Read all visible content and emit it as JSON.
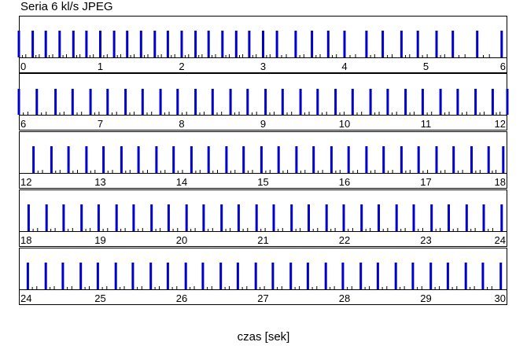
{
  "chart_data": {
    "type": "bar",
    "title": "Seria 6 kl/s JPEG",
    "xlabel": "czas [sek]",
    "ylabel": "",
    "grid": false,
    "legend": "none",
    "bar_color": "#0000cc",
    "tick_color": "#000000",
    "rows": [
      {
        "xlim": [
          0,
          6
        ],
        "tick_labels": [
          "0",
          "1",
          "2",
          "3",
          "4",
          "5",
          "6"
        ],
        "frames": [
          0.0,
          0.17,
          0.33,
          0.5,
          0.67,
          0.83,
          1.0,
          1.17,
          1.33,
          1.5,
          1.67,
          1.83,
          2.0,
          2.17,
          2.33,
          2.5,
          2.67,
          2.83,
          3.0,
          3.17,
          3.4,
          3.6,
          3.8,
          4.0,
          4.27,
          4.47,
          4.7,
          4.9,
          5.13,
          5.33,
          5.63,
          5.93
        ]
      },
      {
        "xlim": [
          6,
          12
        ],
        "tick_labels": [
          "6",
          "7",
          "8",
          "9",
          "10",
          "11",
          "12"
        ],
        "frames": [
          6.0,
          6.22,
          6.45,
          6.66,
          6.88,
          7.09,
          7.31,
          7.52,
          7.74,
          7.95,
          8.17,
          8.38,
          8.6,
          8.81,
          9.03,
          9.24,
          9.46,
          9.67,
          9.89,
          10.1,
          10.32,
          10.53,
          10.75,
          10.96,
          11.18,
          11.39,
          11.61,
          11.82,
          12.0
        ]
      },
      {
        "xlim": [
          12,
          18
        ],
        "tick_labels": [
          "12",
          "13",
          "14",
          "15",
          "16",
          "17",
          "18"
        ],
        "frames": [
          12.18,
          12.4,
          12.61,
          12.83,
          13.04,
          13.26,
          13.47,
          13.69,
          13.9,
          14.12,
          14.33,
          14.55,
          14.76,
          14.98,
          15.19,
          15.41,
          15.62,
          15.84,
          16.05,
          16.27,
          16.48,
          16.7,
          16.91,
          17.13,
          17.34,
          17.56,
          17.77,
          17.95
        ]
      },
      {
        "xlim": [
          18,
          24
        ],
        "tick_labels": [
          "18",
          "19",
          "20",
          "21",
          "22",
          "23",
          "24"
        ],
        "frames": [
          18.12,
          18.34,
          18.55,
          18.77,
          18.98,
          19.2,
          19.41,
          19.63,
          19.84,
          20.06,
          20.27,
          20.49,
          20.7,
          20.92,
          21.13,
          21.35,
          21.56,
          21.78,
          21.99,
          22.21,
          22.42,
          22.64,
          22.85,
          23.07,
          23.28,
          23.5,
          23.71,
          23.93
        ]
      },
      {
        "xlim": [
          24,
          30
        ],
        "tick_labels": [
          "24",
          "25",
          "26",
          "27",
          "28",
          "29",
          "30"
        ],
        "frames": [
          24.11,
          24.33,
          24.54,
          24.76,
          24.97,
          25.19,
          25.4,
          25.62,
          25.83,
          26.05,
          26.26,
          26.48,
          26.69,
          26.91,
          27.12,
          27.34,
          27.55,
          27.77,
          27.98,
          28.2,
          28.41,
          28.63,
          28.84,
          29.06,
          29.27,
          29.49,
          29.7,
          29.92
        ]
      }
    ]
  }
}
